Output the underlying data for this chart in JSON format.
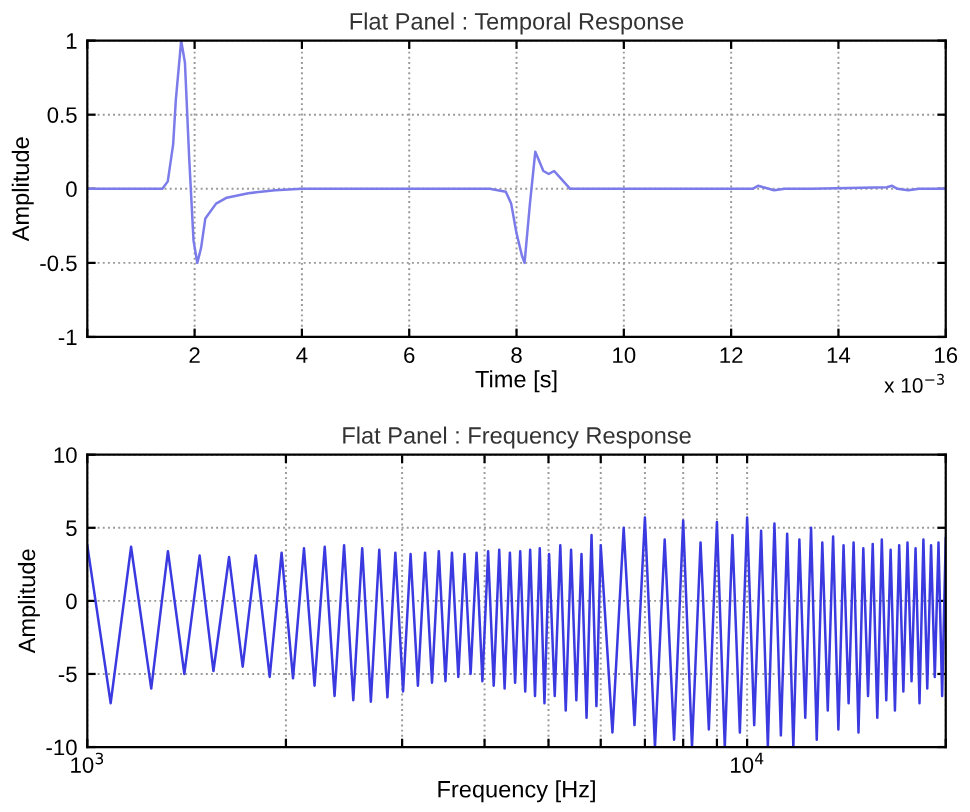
{
  "chart_data": [
    {
      "type": "line",
      "title": "Flat Panel : Temporal Response",
      "xlabel": "Time [s]",
      "ylabel": "Amplitude",
      "annotations": [
        "x 10$^{−3}$"
      ],
      "xlim": [
        0,
        16
      ],
      "xticks": [
        {
          "value": 0,
          "label": null
        },
        2,
        4,
        6,
        8,
        10,
        12,
        14,
        16
      ],
      "ylim": [
        -1,
        1
      ],
      "yticks": [
        -1,
        -0.5,
        0,
        0.5,
        1
      ],
      "grid": true,
      "line_style": "solid",
      "series": [
        {
          "color": "#7b7bea",
          "x": [
            0,
            1.4,
            1.5,
            1.6,
            1.65,
            1.75,
            1.82,
            1.9,
            1.98,
            2.05,
            2.12,
            2.2,
            2.4,
            2.6,
            3.0,
            3.5,
            4,
            7.5,
            7.8,
            7.9,
            8.0,
            8.1,
            8.15,
            8.25,
            8.35,
            8.5,
            8.6,
            8.7,
            8.8,
            9.0,
            12.4,
            12.5,
            12.6,
            12.8,
            13.0,
            13.5,
            14.9,
            15.0,
            15.1,
            15.3,
            15.5,
            16
          ],
          "values": [
            0,
            0,
            0.05,
            0.3,
            0.6,
            1.0,
            0.85,
            0.2,
            -0.35,
            -0.5,
            -0.4,
            -0.2,
            -0.1,
            -0.06,
            -0.03,
            -0.01,
            0,
            0,
            -0.02,
            -0.1,
            -0.3,
            -0.45,
            -0.5,
            -0.1,
            0.25,
            0.12,
            0.1,
            0.12,
            0.08,
            0,
            0,
            0.02,
            0.01,
            -0.01,
            0,
            0,
            0.01,
            0.02,
            0,
            -0.01,
            0,
            0
          ]
        }
      ]
    },
    {
      "type": "line",
      "title": "Flat Panel : Frequency Response",
      "xlabel": "Frequency [Hz]",
      "ylabel": "Amplitude",
      "log": "x",
      "xlim": [
        1000,
        20000
      ],
      "xticks": [
        {
          "value": 1000,
          "label": "10$^{3}$"
        },
        {
          "value": 2000,
          "label": null
        },
        {
          "value": 3000,
          "label": null
        },
        {
          "value": 4000,
          "label": null
        },
        {
          "value": 5000,
          "label": null
        },
        {
          "value": 6000,
          "label": null
        },
        {
          "value": 7000,
          "label": null
        },
        {
          "value": 8000,
          "label": null
        },
        {
          "value": 9000,
          "label": null
        },
        {
          "value": 10000,
          "label": "10$^{4}$"
        },
        {
          "value": 20000,
          "label": null
        }
      ],
      "ylim": [
        -10,
        10
      ],
      "yticks": [
        -10,
        -5,
        0,
        5,
        10
      ],
      "grid": true,
      "line_style": "solid",
      "series": [
        {
          "color": "#3a3ae0",
          "x": [
            1000,
            1085,
            1165,
            1250,
            1325,
            1403,
            1480,
            1553,
            1640,
            1720,
            1800,
            1890,
            1970,
            2050,
            2130,
            2210,
            2290,
            2370,
            2450,
            2530,
            2610,
            2690,
            2770,
            2850,
            2930,
            3010,
            3090,
            3170,
            3250,
            3330,
            3410,
            3490,
            3570,
            3650,
            3730,
            3810,
            3890,
            3970,
            4050,
            4130,
            4210,
            4290,
            4370,
            4450,
            4530,
            4610,
            4690,
            4770,
            4850,
            4930,
            5010,
            5110,
            5210,
            5310,
            5410,
            5510,
            5610,
            5710,
            5810,
            5910,
            6000,
            6250,
            6500,
            6750,
            7000,
            7250,
            7500,
            7750,
            8000,
            8250,
            8500,
            8750,
            9000,
            9250,
            9500,
            9750,
            10000,
            10250,
            10500,
            10750,
            11000,
            11250,
            11500,
            11750,
            12000,
            12250,
            12500,
            12750,
            13000,
            13250,
            13500,
            13750,
            14000,
            14250,
            14500,
            14750,
            15000,
            15250,
            15500,
            15750,
            16000,
            16250,
            16500,
            16750,
            17000,
            17250,
            17500,
            17750,
            18000,
            18250,
            18500,
            18750,
            19000,
            19250,
            19500,
            19750,
            20000
          ],
          "values": [
            3.8,
            -7,
            3.7,
            -6,
            3.4,
            -5,
            3.1,
            -4.8,
            3.0,
            -4.5,
            3.1,
            -5.2,
            3.3,
            -5.3,
            3.6,
            -5.8,
            3.7,
            -6.5,
            3.8,
            -6.8,
            3.6,
            -6.9,
            3.5,
            -6.6,
            3.3,
            -6.2,
            3.2,
            -5.8,
            3.3,
            -5.6,
            3.4,
            -5.5,
            3.3,
            -5.2,
            3.2,
            -5.0,
            3.3,
            -5.5,
            3.4,
            -5.8,
            3.5,
            -6.0,
            3.3,
            -5.6,
            3.4,
            -6.2,
            3.5,
            -6.5,
            3.6,
            -7.0,
            3.2,
            -6.5,
            3.8,
            -7.5,
            3.5,
            -6.8,
            3.2,
            -8.0,
            4.5,
            -7.2,
            3.8,
            -9.0,
            5.0,
            -8.5,
            5.7,
            -10,
            4.2,
            -9.5,
            5.5,
            -10,
            4.0,
            -8.8,
            5.4,
            -10,
            4.5,
            -9.0,
            5.7,
            -8.5,
            4.8,
            -10,
            5.3,
            -9.2,
            4.6,
            -10,
            4.2,
            -8.0,
            5.0,
            -9.5,
            4.0,
            -7.5,
            4.4,
            -8.8,
            3.8,
            -7.0,
            4.0,
            -9.0,
            3.6,
            -6.5,
            3.9,
            -8.0,
            4.2,
            -6.8,
            3.5,
            -7.5,
            3.8,
            -6.2,
            4.0,
            -5.5,
            3.6,
            -7.0,
            4.2,
            -6.0,
            3.8,
            -5.2,
            4.0,
            -6.5,
            4.3
          ]
        }
      ]
    }
  ]
}
